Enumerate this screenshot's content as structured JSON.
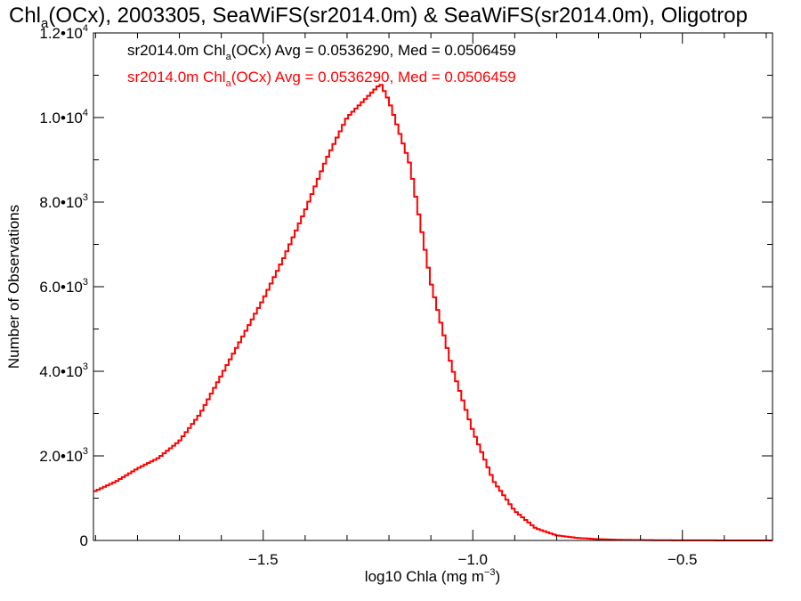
{
  "chart_data": {
    "type": "line",
    "title_main": "Chl",
    "title_sub": "a",
    "title_rest": "(OCx), 2003305, SeaWiFS(sr2014.0m) & SeaWiFS(sr2014.0m), Oligotrop",
    "xlabel_main": "log10 Chla (mg m",
    "xlabel_sup": "−3",
    "xlabel_end": ")",
    "ylabel": "Number of Observations",
    "xlim": [
      -1.905,
      -0.285
    ],
    "ylim": [
      0,
      12000
    ],
    "x_ticks": [
      {
        "value": -1.5,
        "label": "−1.5"
      },
      {
        "value": -1.0,
        "label": "−1.0"
      },
      {
        "value": -0.5,
        "label": "−0.5"
      }
    ],
    "y_ticks": [
      {
        "value": 0,
        "label": "0",
        "base": "0",
        "exp": ""
      },
      {
        "value": 2000,
        "label": "2.0•10^3",
        "base": "2.0•10",
        "exp": "3"
      },
      {
        "value": 4000,
        "label": "4.0•10^3",
        "base": "4.0•10",
        "exp": "3"
      },
      {
        "value": 6000,
        "label": "6.0•10^3",
        "base": "6.0•10",
        "exp": "3"
      },
      {
        "value": 8000,
        "label": "8.0•10^3",
        "base": "8.0•10",
        "exp": "3"
      },
      {
        "value": 10000,
        "label": "1.0•10^4",
        "base": "1.0•10",
        "exp": "4"
      },
      {
        "value": 12000,
        "label": "1.2•10^4",
        "base": "1.2•10",
        "exp": "4"
      }
    ],
    "legend": [
      {
        "prefix": "sr2014.0m Chl",
        "sub": "a",
        "suffix": "(OCx) Avg = 0.0536290, Med = 0.0506459",
        "color": "#000000"
      },
      {
        "prefix": "sr2014.0m Chl",
        "sub": "a",
        "suffix": "(OCx) Avg = 0.0536290, Med = 0.0506459",
        "color": "#ff0000"
      }
    ],
    "series": [
      {
        "color": "#ff0000",
        "x": [
          -1.905,
          -1.85,
          -1.8,
          -1.75,
          -1.7,
          -1.65,
          -1.6,
          -1.55,
          -1.5,
          -1.45,
          -1.4,
          -1.35,
          -1.3,
          -1.25,
          -1.22,
          -1.2,
          -1.15,
          -1.1,
          -1.05,
          -1.0,
          -0.95,
          -0.9,
          -0.85,
          -0.8,
          -0.75,
          -0.7,
          -0.65,
          -0.6,
          -0.55,
          -0.5,
          -0.45,
          -0.4,
          -0.285
        ],
        "values": [
          1150,
          1400,
          1700,
          1950,
          2350,
          3000,
          3900,
          4800,
          5700,
          6700,
          7800,
          9000,
          10000,
          10500,
          10800,
          10400,
          8900,
          6100,
          4100,
          2600,
          1400,
          700,
          290,
          120,
          60,
          30,
          15,
          10,
          5,
          3,
          2,
          1,
          0
        ]
      }
    ]
  }
}
